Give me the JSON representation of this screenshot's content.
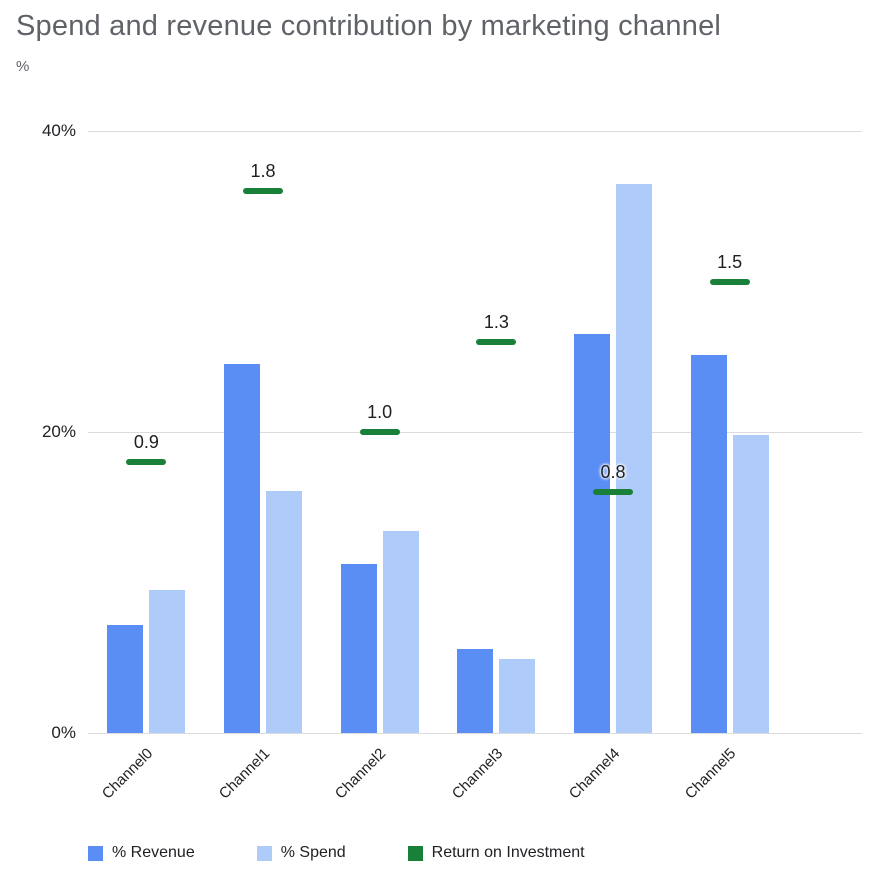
{
  "chart_data": {
    "type": "bar",
    "title": "Spend and revenue contribution by marketing channel",
    "ylabel": "%",
    "categories": [
      "Channel0",
      "Channel1",
      "Channel2",
      "Channel3",
      "Channel4",
      "Channel5"
    ],
    "series": [
      {
        "name": "% Revenue",
        "type": "bar",
        "color": "#5b8ef4",
        "values": [
          7.2,
          24.5,
          11.2,
          5.6,
          26.5,
          25.1
        ]
      },
      {
        "name": "% Spend",
        "type": "bar",
        "color": "#aecbfa",
        "values": [
          9.5,
          16.1,
          13.4,
          4.9,
          36.5,
          19.8
        ]
      },
      {
        "name": "Return on Investment",
        "type": "dash",
        "color": "#188038",
        "values": [
          0.9,
          1.8,
          1.0,
          1.3,
          0.8,
          1.5
        ],
        "labels": [
          "0.9",
          "1.8",
          "1.0",
          "1.3",
          "0.8",
          "1.5"
        ],
        "value_scale": 20
      }
    ],
    "ylim": [
      0,
      40
    ],
    "yticks": [
      "0%",
      "20%",
      "40%"
    ],
    "grid": true,
    "legend_position": "bottom"
  }
}
